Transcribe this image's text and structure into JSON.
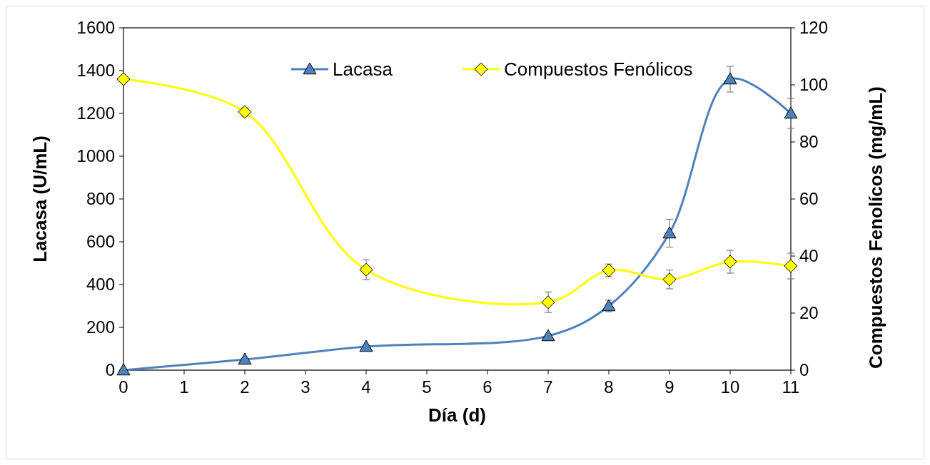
{
  "chart_data": {
    "type": "line",
    "xlabel": "Día (d)",
    "ylabel": "Lacasa (U/mL)",
    "y2label": "Compuestos Fenolícos (mg/mL)",
    "x": [
      0,
      2,
      4,
      7,
      8,
      9,
      10,
      11
    ],
    "xlim": [
      0,
      11
    ],
    "xticks": [
      0,
      1,
      2,
      3,
      4,
      5,
      6,
      7,
      8,
      9,
      10,
      11
    ],
    "ylim": [
      0,
      1600
    ],
    "yticks": [
      0,
      200,
      400,
      600,
      800,
      1000,
      1200,
      1400,
      1600
    ],
    "y2lim": [
      0,
      120
    ],
    "y2ticks": [
      0,
      20,
      40,
      60,
      80,
      100,
      120
    ],
    "grid": false,
    "legend": "top",
    "line_style": "solid",
    "series": [
      {
        "name": "Lacasa",
        "color": "#4f81bd",
        "marker": "triangle",
        "values": [
          0,
          50,
          110,
          160,
          300,
          640,
          1360,
          1200
        ],
        "errors": [
          null,
          null,
          null,
          null,
          27,
          65,
          60,
          70
        ]
      },
      {
        "name": "Compuestos Fenólicos",
        "color": "#ffff00",
        "marker": "diamond",
        "axis": "y2",
        "values": [
          102,
          90.5,
          35.2,
          23.8,
          35,
          31.8,
          38,
          36.5
        ],
        "errors": [
          null,
          1.5,
          3.5,
          3.6,
          2.2,
          3.3,
          4,
          4.5
        ]
      }
    ]
  }
}
